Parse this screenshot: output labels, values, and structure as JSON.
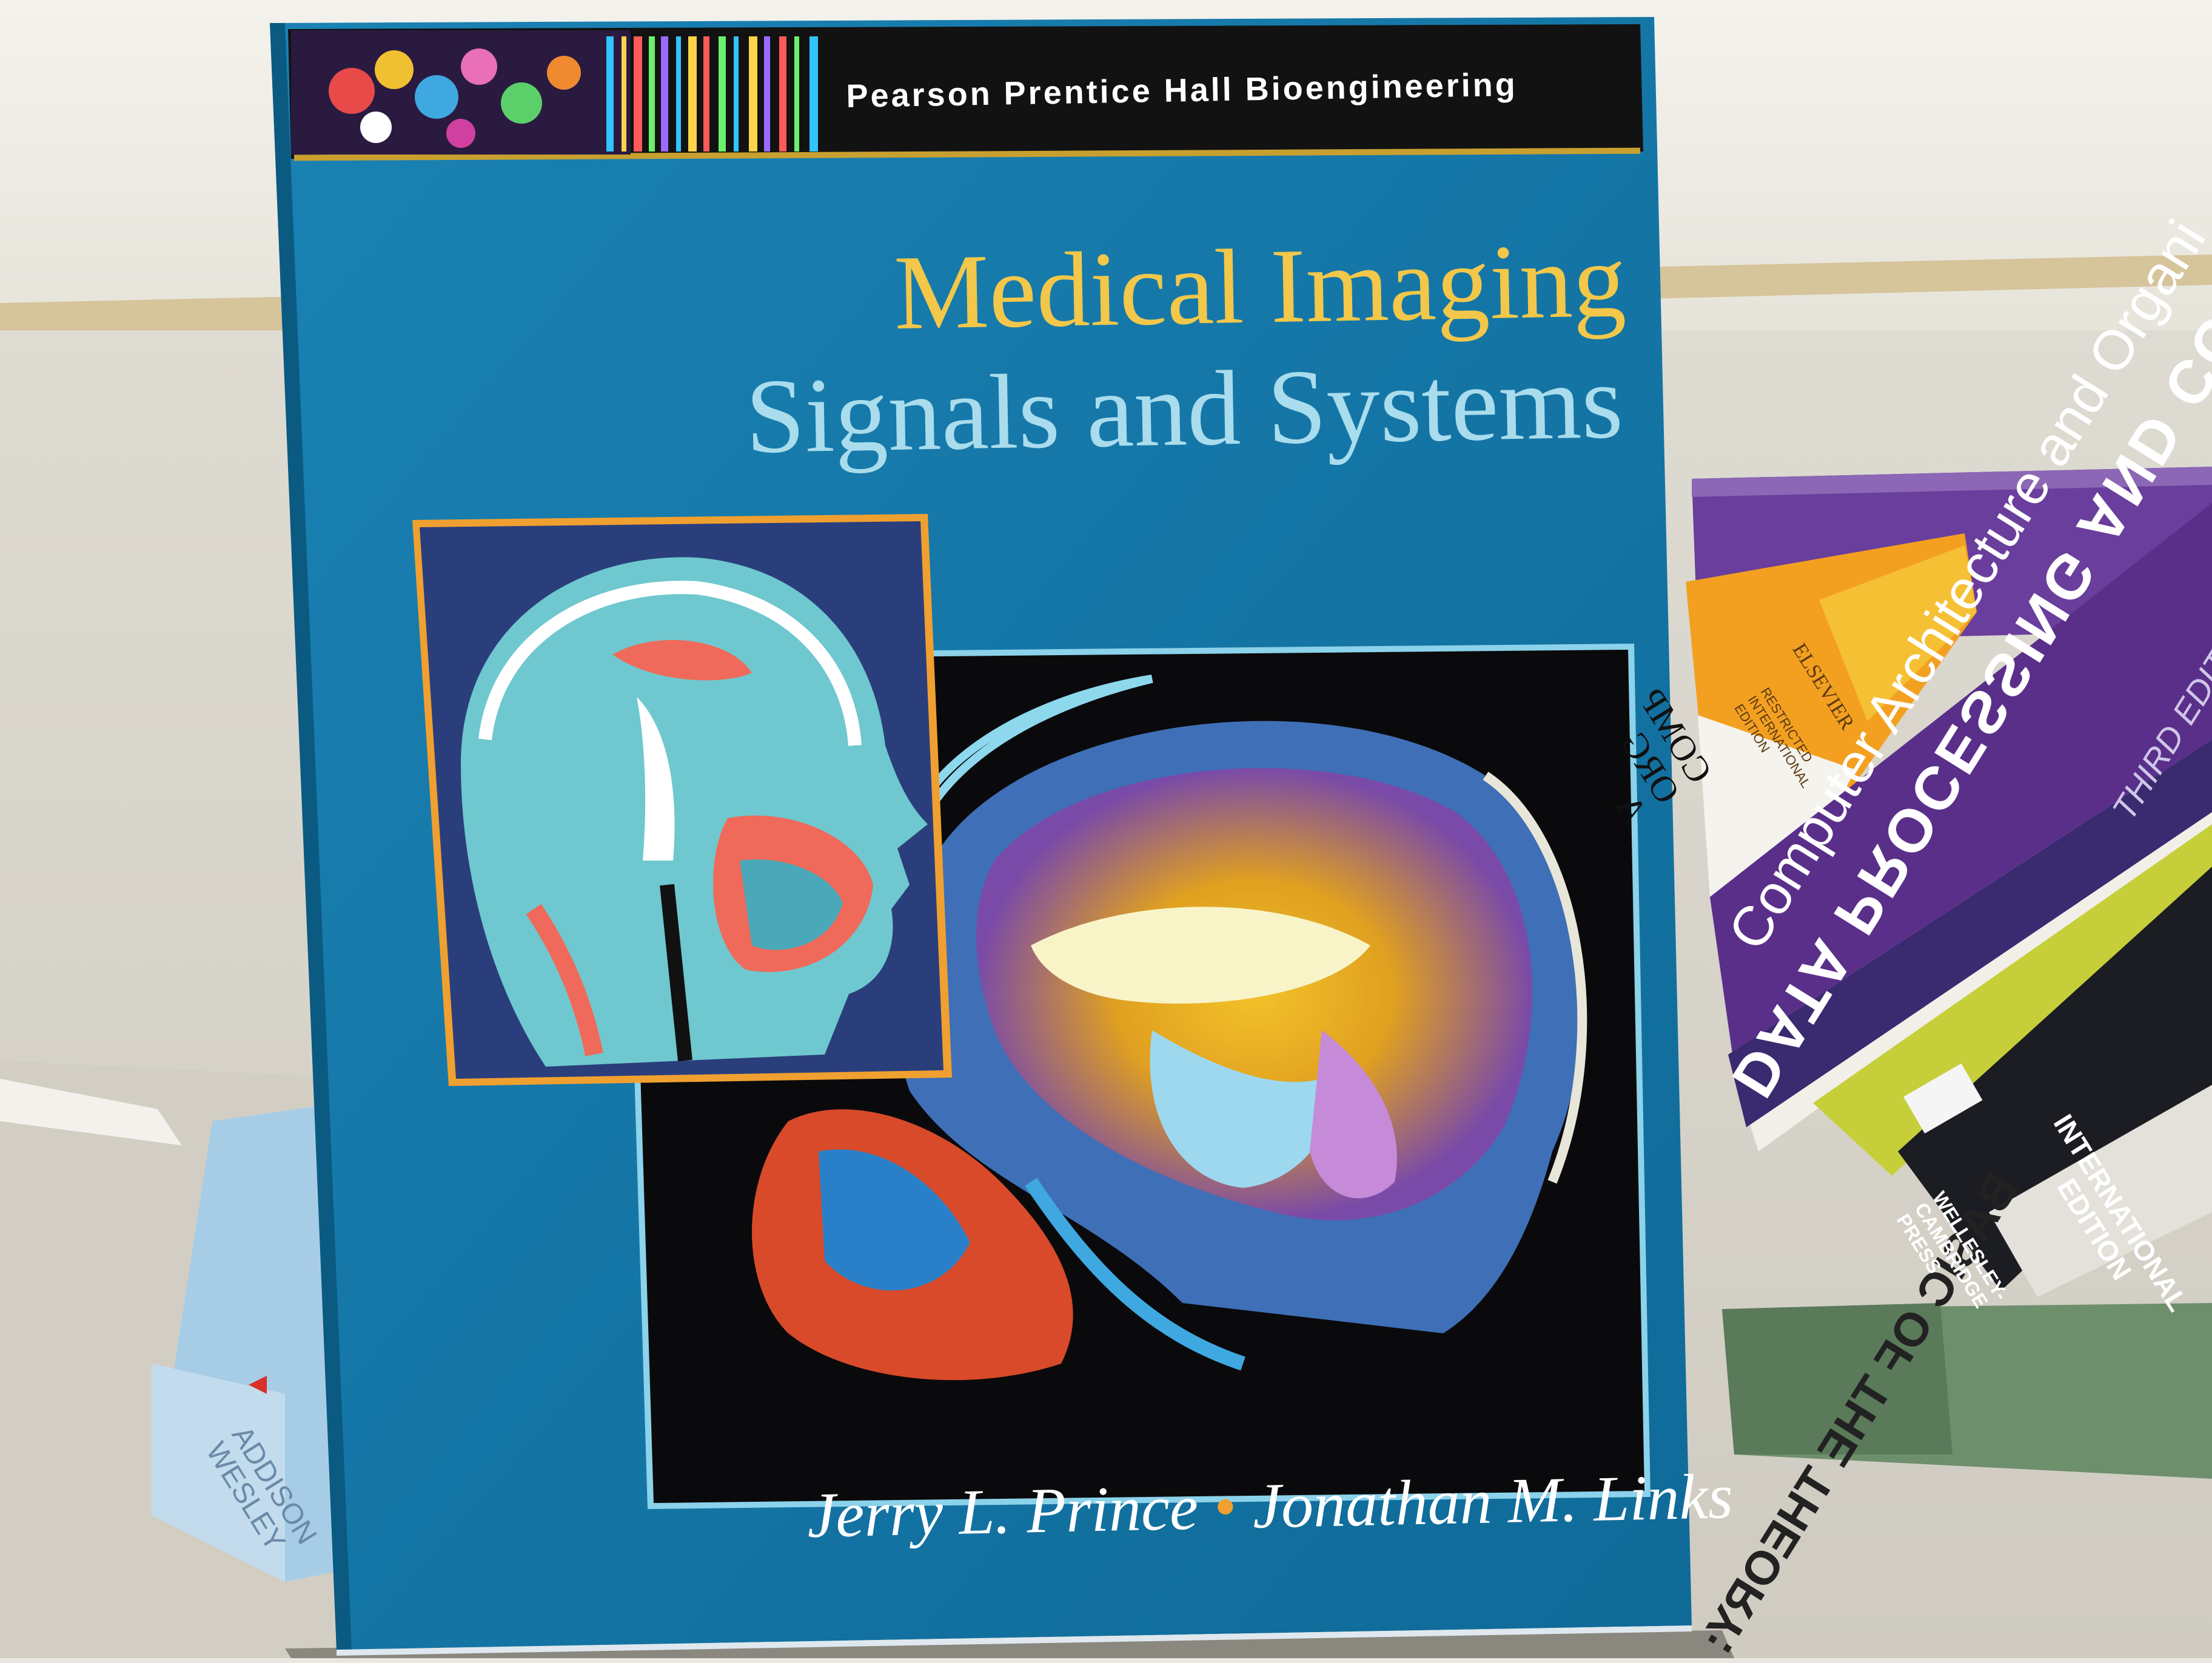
{
  "main_book": {
    "series": "Pearson Prentice Hall Bioengineering",
    "title": "Medical Imaging",
    "subtitle": "Signals and Systems",
    "author_1": "Jerry L. Prince",
    "author_separator": "•",
    "author_2": "Jonathan M. Links"
  },
  "background_books": {
    "purple_spine_title": "Computer Architecture and Organi",
    "purple_spine_edition": "THIRD EDITION",
    "white_spine_title": "DATA PROCESSING AND COMMUNICATIO",
    "yellow_spine_title": "BASIC OF THE THEORY:",
    "black_spine_edition": "INTERNATIONAL\nEDITION",
    "black_spine_publisher": "WELLESLEY-\nCAMBRIDGE\nPRESS",
    "orange_spine_publisher": "ELSEVIER",
    "orange_spine_note": "RESTRICTED\nINTERNATIONAL\nEDITION",
    "orange_spine_title": "COMP\nORG\nA",
    "left_book_publisher": "ADDISON\nWESLEY"
  },
  "colors": {
    "cover_blue": "#1477a8",
    "title_yellow": "#f2c74a",
    "subtitle_blue": "#a9dcec",
    "series_band": "#121212",
    "purple_book": "#5a2f8a",
    "orange_book": "#f3a021"
  }
}
